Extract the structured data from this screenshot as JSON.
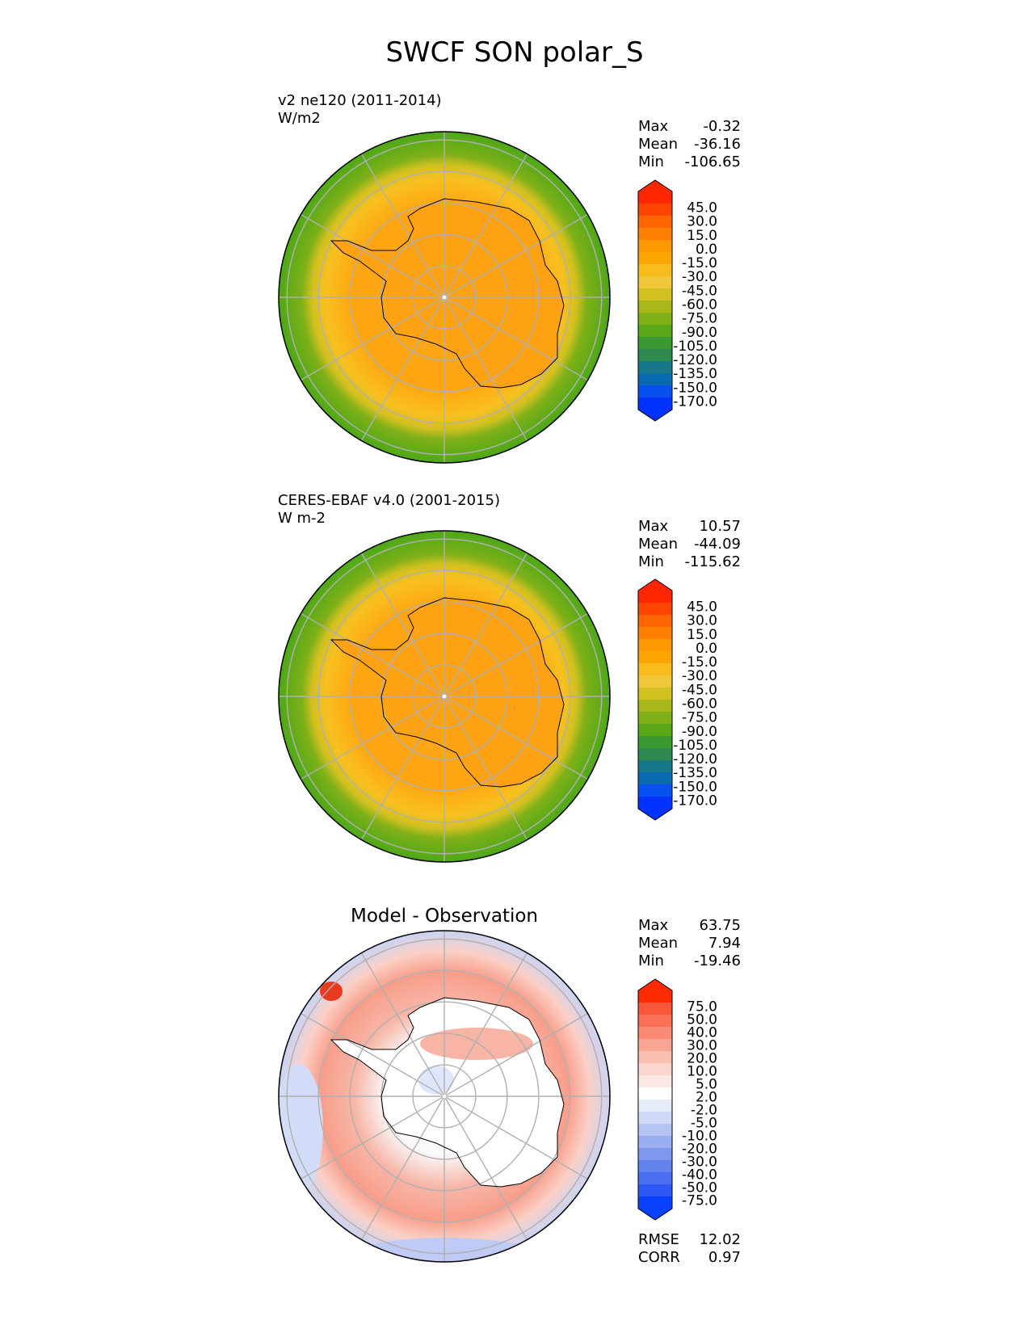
{
  "title": "SWCF SON polar_S",
  "panels": [
    {
      "id": "test",
      "label": "v2 ne120 (2011-2014)",
      "units": "W/m2",
      "heading": "",
      "stats": [
        {
          "name": "Max",
          "value": "-0.32"
        },
        {
          "name": "Mean",
          "value": "-36.16"
        },
        {
          "name": "Min",
          "value": "-106.65"
        }
      ],
      "field": {
        "inner": -28,
        "outer_ring": -88,
        "center": -8
      }
    },
    {
      "id": "ref",
      "label": "CERES-EBAF v4.0 (2001-2015)",
      "units": "W m-2",
      "heading": "",
      "stats": [
        {
          "name": "Max",
          "value": "10.57"
        },
        {
          "name": "Mean",
          "value": "-44.09"
        },
        {
          "name": "Min",
          "value": "-115.62"
        }
      ],
      "field": {
        "inner": -38,
        "outer_ring": -95,
        "center": -20
      }
    },
    {
      "id": "diff",
      "label": "",
      "units": "",
      "heading": "Model - Observation",
      "stats": [
        {
          "name": "Max",
          "value": "63.75"
        },
        {
          "name": "Mean",
          "value": "7.94"
        },
        {
          "name": "Min",
          "value": "-19.46"
        }
      ],
      "extra_stats": [
        {
          "name": "RMSE",
          "value": "12.02"
        },
        {
          "name": "CORR",
          "value": "0.97"
        }
      ],
      "field": {
        "inner": 3,
        "outer_ring": 15,
        "center": -3
      }
    }
  ],
  "colorbars": {
    "main": {
      "ticks": [
        "45.0",
        "30.0",
        "15.0",
        "0.0",
        "-15.0",
        "-30.0",
        "-45.0",
        "-60.0",
        "-75.0",
        "-90.0",
        "-105.0",
        "-120.0",
        "-135.0",
        "-150.0",
        "-170.0"
      ],
      "colors": [
        "#ff2600",
        "#ff4400",
        "#ff6600",
        "#ff7f00",
        "#ff9900",
        "#ffa500",
        "#f8bc1c",
        "#f0c83a",
        "#d0c020",
        "#a8b818",
        "#7fb018",
        "#5aa818",
        "#3a9830",
        "#2f8a4f",
        "#18788a",
        "#0a6ab0",
        "#0850f0",
        "#0033ff"
      ]
    },
    "diff": {
      "ticks": [
        "75.0",
        "50.0",
        "40.0",
        "30.0",
        "20.0",
        "10.0",
        "5.0",
        "2.0",
        "-2.0",
        "-5.0",
        "-10.0",
        "-20.0",
        "-30.0",
        "-40.0",
        "-50.0",
        "-75.0"
      ],
      "colors": [
        "#ff2a00",
        "#f8573a",
        "#fb6f56",
        "#fa8a74",
        "#f9a594",
        "#fabfb2",
        "#fad6cf",
        "#fbe8e4",
        "#ffffff",
        "#e6ebfa",
        "#d0d9f8",
        "#b6c4f5",
        "#9aaff2",
        "#7f97ee",
        "#6383ec",
        "#4a6ef0",
        "#2e58f6",
        "#0a40ff"
      ]
    }
  },
  "chart_data": [
    {
      "type": "heatmap",
      "title": "v2 ne120 (2011-2014)",
      "units": "W/m2",
      "projection": "south polar stereographic",
      "stats": {
        "max": -0.32,
        "mean": -36.16,
        "min": -106.65
      },
      "levels": [
        -170,
        -150,
        -135,
        -120,
        -105,
        -90,
        -75,
        -60,
        -45,
        -30,
        -15,
        0,
        15,
        30,
        45
      ]
    },
    {
      "type": "heatmap",
      "title": "CERES-EBAF v4.0 (2001-2015)",
      "units": "W m-2",
      "projection": "south polar stereographic",
      "stats": {
        "max": 10.57,
        "mean": -44.09,
        "min": -115.62
      },
      "levels": [
        -170,
        -150,
        -135,
        -120,
        -105,
        -90,
        -75,
        -60,
        -45,
        -30,
        -15,
        0,
        15,
        30,
        45
      ]
    },
    {
      "type": "heatmap",
      "title": "Model - Observation",
      "projection": "south polar stereographic",
      "stats": {
        "max": 63.75,
        "mean": 7.94,
        "min": -19.46,
        "rmse": 12.02,
        "corr": 0.97
      },
      "levels": [
        -75,
        -50,
        -40,
        -30,
        -20,
        -10,
        -5,
        -2,
        2,
        5,
        10,
        20,
        30,
        40,
        50,
        75
      ]
    }
  ]
}
